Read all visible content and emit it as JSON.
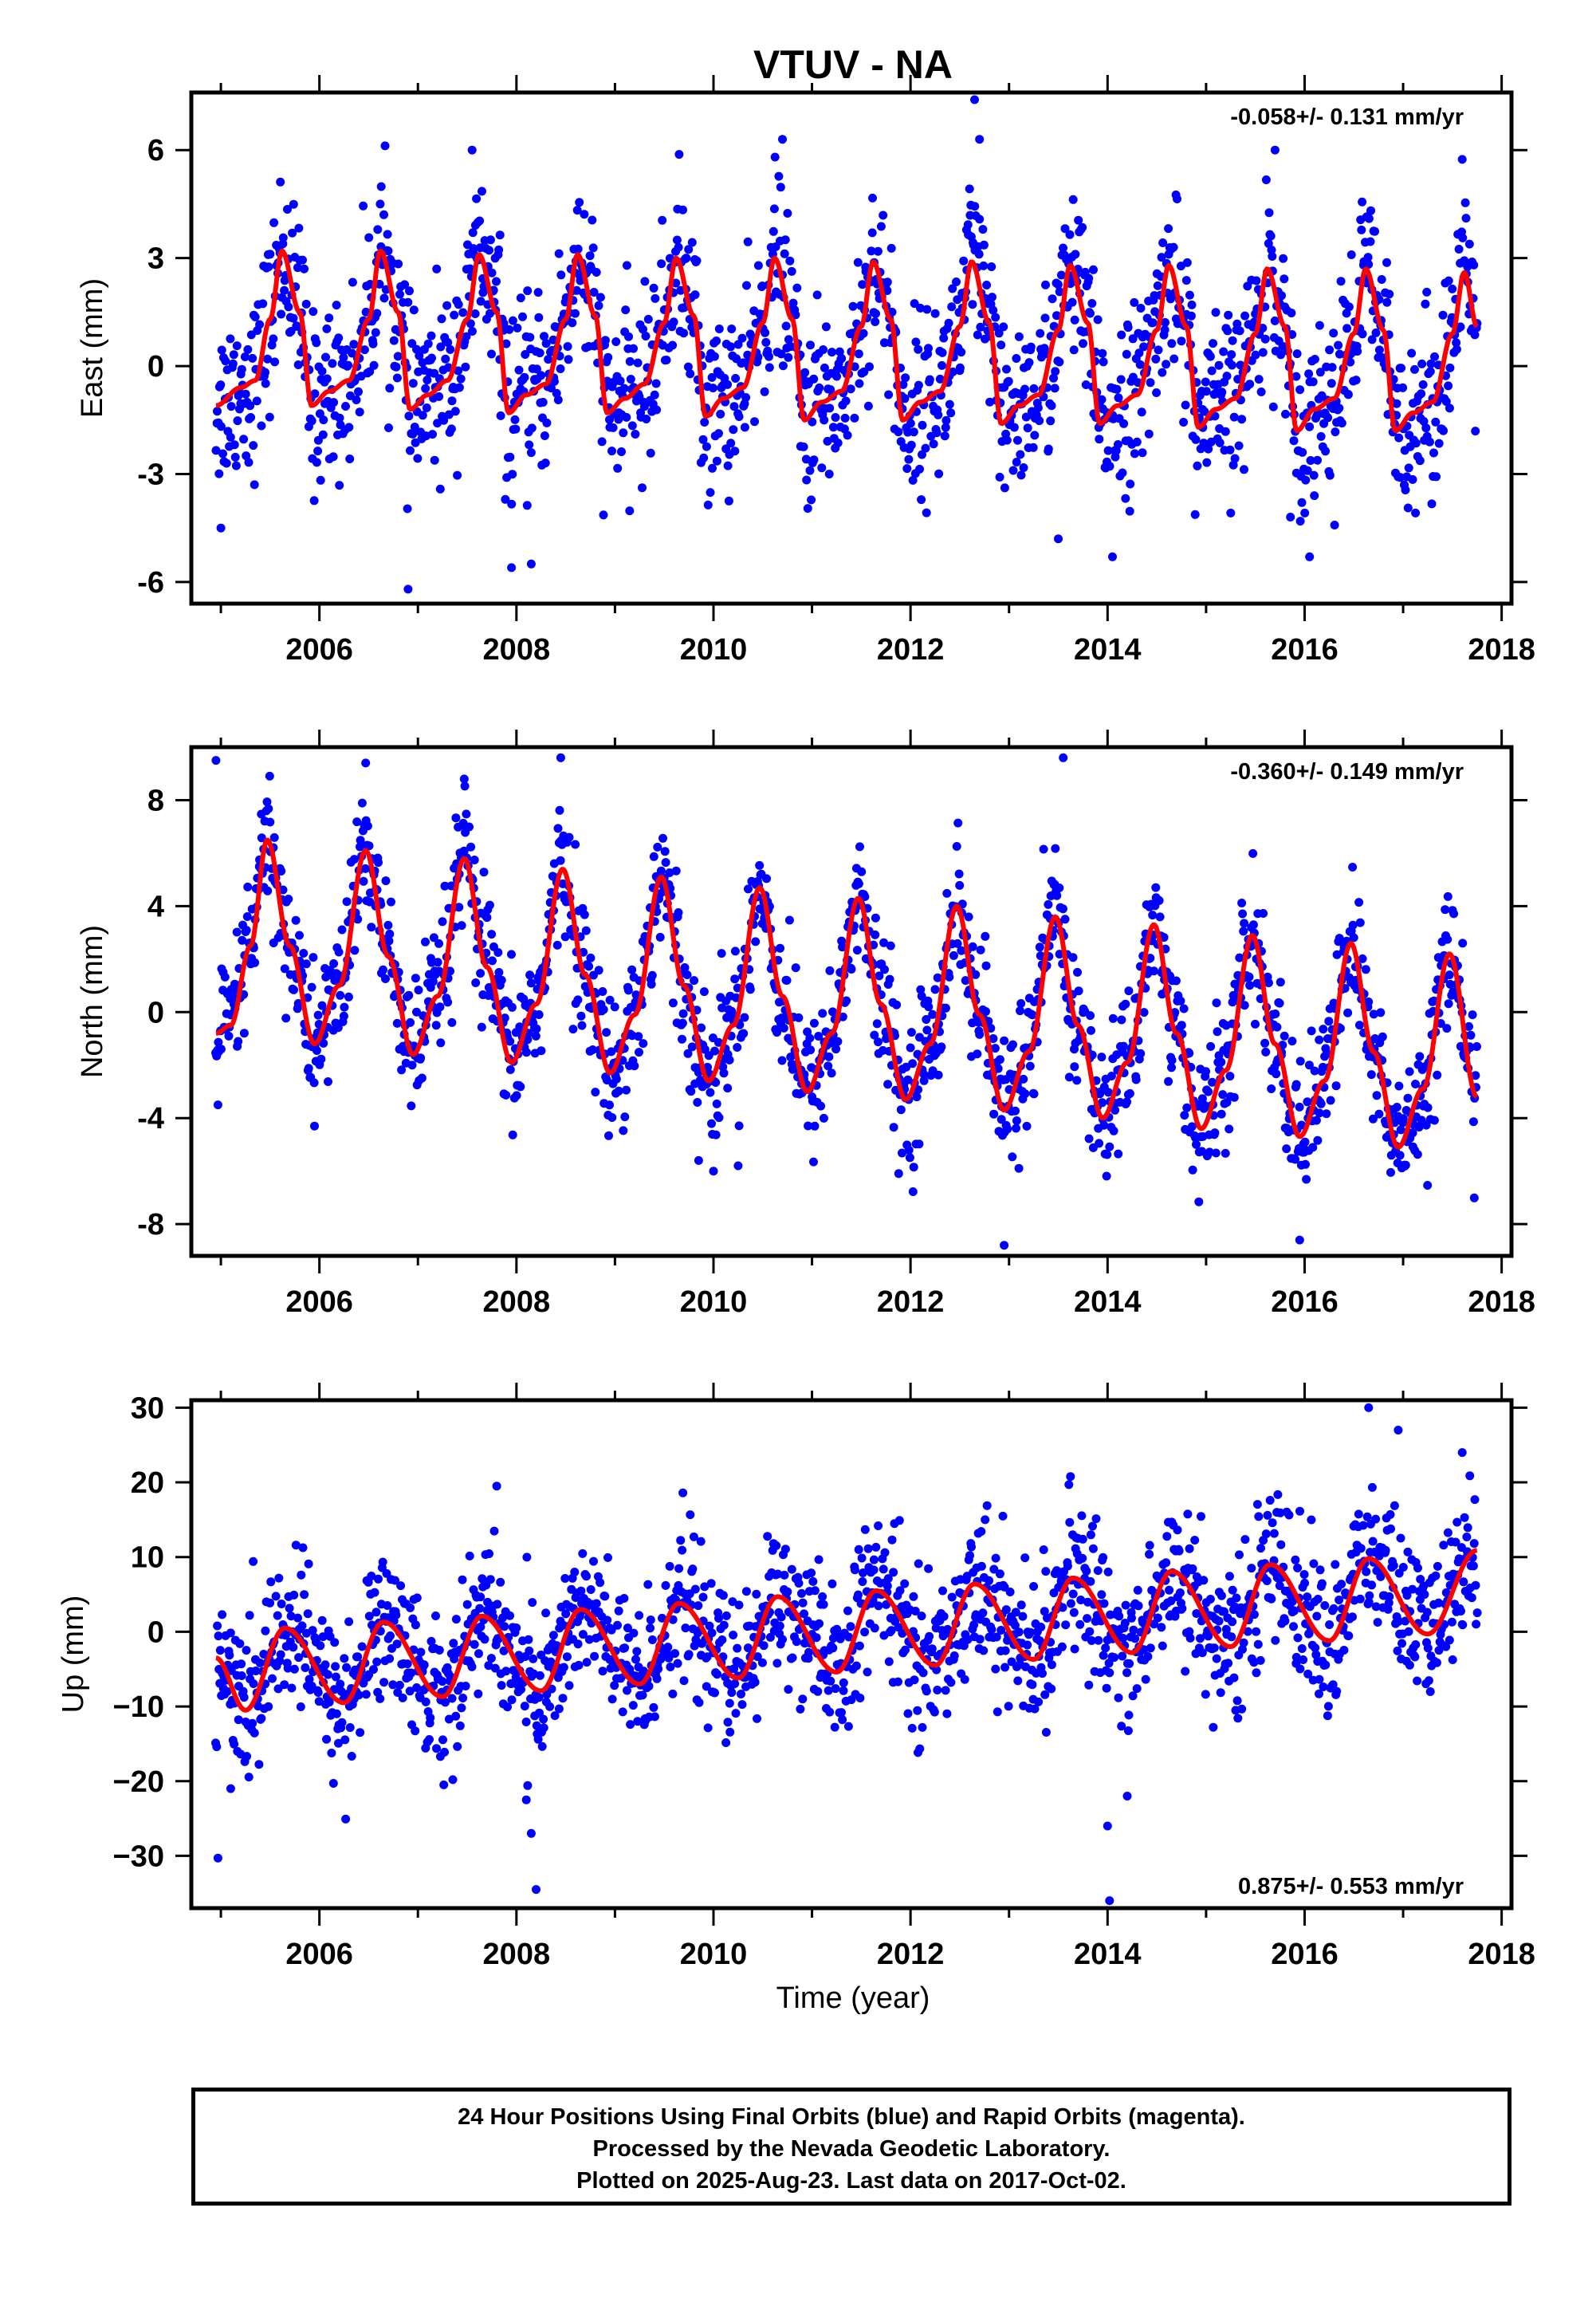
{
  "figure_title": "VTUV - NA",
  "x_axis_label": "Time (year)",
  "footer": {
    "line1": "24 Hour Positions Using Final Orbits (blue) and Rapid Orbits (magenta).",
    "line2": "Processed by the Nevada Geodetic Laboratory.",
    "line3": "Plotted on 2025-Aug-23. Last data on 2017-Oct-02."
  },
  "colors": {
    "final_orbits": "#0000ff",
    "rapid_orbits": "#ff00ff",
    "model_fit": "#ff0000"
  },
  "chart_data": [
    {
      "type": "scatter",
      "title": "VTUV - NA",
      "xlabel": "",
      "ylabel": "East (mm)",
      "xlim": [
        2004.7,
        2018.1
      ],
      "ylim": [
        -6.6,
        7.6
      ],
      "xticks": [
        2006,
        2008,
        2010,
        2012,
        2014,
        2016,
        2018
      ],
      "yticks": [
        -6,
        -3,
        0,
        3,
        6
      ],
      "ytick_labels": [
        "-6",
        "-3",
        "0",
        "3",
        "6"
      ],
      "rate_annotation": "-0.058+/- 0.131 mm/yr",
      "rate_position": "top-right",
      "data_range": [
        2004.95,
        2017.75
      ],
      "fit_curve": [
        [
          2004.95,
          -1.1
        ],
        [
          2005.2,
          -0.6
        ],
        [
          2005.35,
          -0.4
        ],
        [
          2005.5,
          1.3
        ],
        [
          2005.62,
          3.2
        ],
        [
          2005.8,
          1.5
        ],
        [
          2005.92,
          -1.1
        ],
        [
          2006.1,
          -0.7
        ],
        [
          2006.3,
          -0.4
        ],
        [
          2006.5,
          1.3
        ],
        [
          2006.62,
          3.2
        ],
        [
          2006.8,
          1.5
        ],
        [
          2006.92,
          -1.2
        ],
        [
          2007.1,
          -0.8
        ],
        [
          2007.3,
          -0.4
        ],
        [
          2007.5,
          1.3
        ],
        [
          2007.62,
          3.1
        ],
        [
          2007.8,
          1.5
        ],
        [
          2007.92,
          -1.3
        ],
        [
          2008.1,
          -0.8
        ],
        [
          2008.3,
          -0.5
        ],
        [
          2008.5,
          1.3
        ],
        [
          2008.62,
          3.1
        ],
        [
          2008.8,
          1.4
        ],
        [
          2008.92,
          -1.3
        ],
        [
          2009.1,
          -0.9
        ],
        [
          2009.3,
          -0.5
        ],
        [
          2009.5,
          1.2
        ],
        [
          2009.62,
          3.0
        ],
        [
          2009.8,
          1.4
        ],
        [
          2009.92,
          -1.4
        ],
        [
          2010.1,
          -0.9
        ],
        [
          2010.3,
          -0.6
        ],
        [
          2010.5,
          1.2
        ],
        [
          2010.62,
          3.0
        ],
        [
          2010.8,
          1.3
        ],
        [
          2010.92,
          -1.5
        ],
        [
          2011.1,
          -1.0
        ],
        [
          2011.3,
          -0.7
        ],
        [
          2011.5,
          1.1
        ],
        [
          2011.62,
          2.9
        ],
        [
          2011.8,
          1.3
        ],
        [
          2011.92,
          -1.5
        ],
        [
          2012.1,
          -1.0
        ],
        [
          2012.3,
          -0.7
        ],
        [
          2012.5,
          1.1
        ],
        [
          2012.62,
          2.9
        ],
        [
          2012.8,
          1.2
        ],
        [
          2012.92,
          -1.6
        ],
        [
          2013.1,
          -1.1
        ],
        [
          2013.3,
          -0.8
        ],
        [
          2013.5,
          1.0
        ],
        [
          2013.62,
          2.8
        ],
        [
          2013.8,
          1.2
        ],
        [
          2013.92,
          -1.6
        ],
        [
          2014.1,
          -1.1
        ],
        [
          2014.3,
          -0.8
        ],
        [
          2014.5,
          1.0
        ],
        [
          2014.62,
          2.8
        ],
        [
          2014.8,
          1.1
        ],
        [
          2014.92,
          -1.7
        ],
        [
          2015.1,
          -1.2
        ],
        [
          2015.3,
          -0.9
        ],
        [
          2015.5,
          0.9
        ],
        [
          2015.62,
          2.7
        ],
        [
          2015.8,
          1.1
        ],
        [
          2015.92,
          -1.8
        ],
        [
          2016.1,
          -1.2
        ],
        [
          2016.3,
          -0.9
        ],
        [
          2016.5,
          0.9
        ],
        [
          2016.62,
          2.7
        ],
        [
          2016.8,
          1.0
        ],
        [
          2016.92,
          -1.8
        ],
        [
          2017.1,
          -1.3
        ],
        [
          2017.3,
          -1.0
        ],
        [
          2017.5,
          0.9
        ],
        [
          2017.62,
          2.6
        ],
        [
          2017.75,
          1.1
        ]
      ],
      "scatter_spread": 1.2,
      "outliers": [
        [
          2005.0,
          -4.5
        ],
        [
          2006.9,
          -6.2
        ],
        [
          2007.95,
          -5.6
        ],
        [
          2008.15,
          -5.5
        ],
        [
          2012.65,
          7.4
        ],
        [
          2014.05,
          -5.3
        ],
        [
          2016.05,
          -5.3
        ],
        [
          2010.7,
          6.3
        ],
        [
          2007.55,
          6.0
        ],
        [
          2015.7,
          6.0
        ],
        [
          2012.7,
          6.3
        ],
        [
          2013.5,
          -4.8
        ]
      ]
    },
    {
      "type": "scatter",
      "xlabel": "",
      "ylabel": "North (mm)",
      "xlim": [
        2004.7,
        2018.1
      ],
      "ylim": [
        -9.2,
        10.0
      ],
      "xticks": [
        2006,
        2008,
        2010,
        2012,
        2014,
        2016,
        2018
      ],
      "yticks": [
        -8,
        -4,
        0,
        4,
        8
      ],
      "ytick_labels": [
        "-8",
        "-4",
        "0",
        "4",
        "8"
      ],
      "rate_annotation": "-0.360+/- 0.149 mm/yr",
      "rate_position": "top-right",
      "data_range": [
        2004.95,
        2017.75
      ],
      "fit_curve": [
        [
          2004.95,
          -0.8
        ],
        [
          2005.1,
          -0.5
        ],
        [
          2005.3,
          2.5
        ],
        [
          2005.47,
          6.5
        ],
        [
          2005.7,
          2.5
        ],
        [
          2005.95,
          -1.2
        ],
        [
          2006.2,
          1.0
        ],
        [
          2006.47,
          6.1
        ],
        [
          2006.7,
          2.1
        ],
        [
          2006.95,
          -1.6
        ],
        [
          2007.2,
          0.6
        ],
        [
          2007.47,
          5.8
        ],
        [
          2007.7,
          1.7
        ],
        [
          2007.95,
          -1.9
        ],
        [
          2008.2,
          0.3
        ],
        [
          2008.47,
          5.4
        ],
        [
          2008.7,
          1.4
        ],
        [
          2008.95,
          -2.3
        ],
        [
          2009.2,
          -0.1
        ],
        [
          2009.47,
          5.1
        ],
        [
          2009.7,
          1.0
        ],
        [
          2009.95,
          -2.6
        ],
        [
          2010.2,
          -0.5
        ],
        [
          2010.47,
          4.7
        ],
        [
          2010.7,
          0.6
        ],
        [
          2010.95,
          -3.0
        ],
        [
          2011.2,
          -0.8
        ],
        [
          2011.47,
          4.3
        ],
        [
          2011.7,
          0.3
        ],
        [
          2011.95,
          -3.3
        ],
        [
          2012.2,
          -1.2
        ],
        [
          2012.47,
          4.0
        ],
        [
          2012.7,
          -0.1
        ],
        [
          2012.95,
          -3.7
        ],
        [
          2013.2,
          -1.5
        ],
        [
          2013.47,
          3.6
        ],
        [
          2013.7,
          -0.5
        ],
        [
          2013.95,
          -4.0
        ],
        [
          2014.2,
          -1.9
        ],
        [
          2014.47,
          3.3
        ],
        [
          2014.7,
          -0.8
        ],
        [
          2014.95,
          -4.4
        ],
        [
          2015.2,
          -2.2
        ],
        [
          2015.47,
          2.9
        ],
        [
          2015.7,
          -1.2
        ],
        [
          2015.95,
          -4.7
        ],
        [
          2016.2,
          -2.6
        ],
        [
          2016.47,
          2.6
        ],
        [
          2016.7,
          -1.5
        ],
        [
          2016.95,
          -5.1
        ],
        [
          2017.2,
          -2.9
        ],
        [
          2017.47,
          2.2
        ],
        [
          2017.75,
          -3.2
        ]
      ],
      "scatter_spread": 1.3,
      "outliers": [
        [
          2004.95,
          9.5
        ],
        [
          2004.97,
          -3.5
        ],
        [
          2008.45,
          9.6
        ],
        [
          2013.55,
          9.6
        ],
        [
          2012.95,
          -8.8
        ],
        [
          2015.95,
          -8.6
        ],
        [
          2006.47,
          9.4
        ],
        [
          2007.47,
          8.8
        ],
        [
          2009.85,
          -5.6
        ],
        [
          2010.0,
          -6.0
        ],
        [
          2010.25,
          -5.8
        ],
        [
          2005.95,
          -4.3
        ]
      ]
    },
    {
      "type": "scatter",
      "xlabel": "Time (year)",
      "ylabel": "Up (mm)",
      "xlim": [
        2004.7,
        2018.1
      ],
      "ylim": [
        -37,
        31
      ],
      "xticks": [
        2006,
        2008,
        2010,
        2012,
        2014,
        2016,
        2018
      ],
      "yticks": [
        -30,
        -20,
        -10,
        0,
        10,
        20,
        30
      ],
      "ytick_labels": [
        "−30",
        "−20",
        "−10",
        "0",
        "10",
        "20",
        "30"
      ],
      "rate_annotation": "0.875+/- 0.553 mm/yr",
      "rate_position": "bottom-right",
      "data_range": [
        2004.95,
        2017.75
      ],
      "fit_curve": [
        [
          2004.95,
          -3.5
        ],
        [
          2005.25,
          -10.5
        ],
        [
          2005.65,
          0.5
        ],
        [
          2006.25,
          -9.5
        ],
        [
          2006.65,
          1.3
        ],
        [
          2007.25,
          -8.7
        ],
        [
          2007.65,
          2.1
        ],
        [
          2008.25,
          -7.9
        ],
        [
          2008.65,
          3.0
        ],
        [
          2009.25,
          -7.0
        ],
        [
          2009.65,
          3.8
        ],
        [
          2010.25,
          -6.2
        ],
        [
          2010.65,
          4.7
        ],
        [
          2011.25,
          -5.4
        ],
        [
          2011.65,
          5.5
        ],
        [
          2012.25,
          -4.5
        ],
        [
          2012.65,
          6.4
        ],
        [
          2013.25,
          -3.7
        ],
        [
          2013.65,
          7.2
        ],
        [
          2014.25,
          -2.8
        ],
        [
          2014.65,
          8.1
        ],
        [
          2015.25,
          -2.0
        ],
        [
          2015.65,
          9.0
        ],
        [
          2016.25,
          -1.2
        ],
        [
          2016.65,
          9.8
        ],
        [
          2017.25,
          -0.3
        ],
        [
          2017.75,
          10.9
        ]
      ],
      "scatter_spread": 5.0,
      "outliers": [
        [
          2004.97,
          -30.3
        ],
        [
          2008.2,
          -34.5
        ],
        [
          2008.1,
          -22.5
        ],
        [
          2008.15,
          -27
        ],
        [
          2014.02,
          -36.0
        ],
        [
          2014.0,
          -26
        ],
        [
          2014.2,
          -22
        ],
        [
          2016.65,
          30.0
        ],
        [
          2016.95,
          27.0
        ],
        [
          2007.8,
          19.5
        ],
        [
          2005.1,
          -21
        ],
        [
          2017.6,
          24
        ]
      ]
    }
  ]
}
